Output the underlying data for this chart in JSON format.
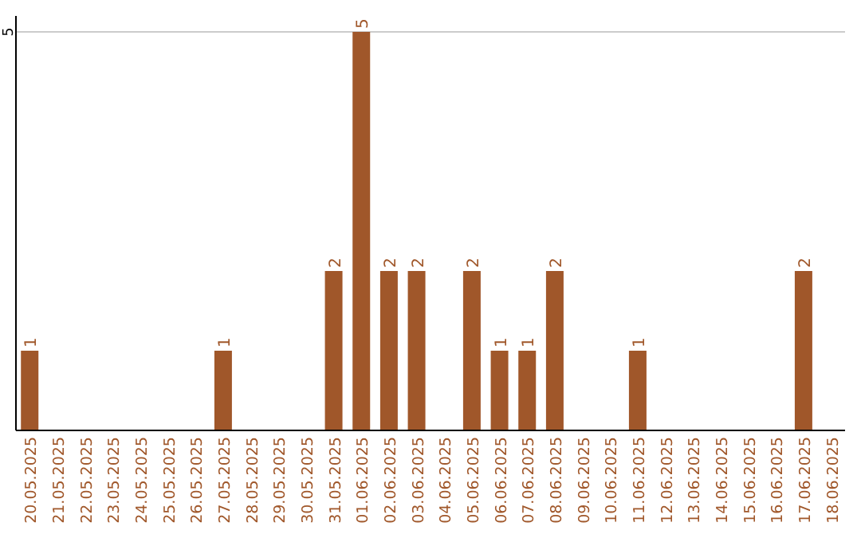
{
  "chart_data": {
    "type": "bar",
    "categories": [
      "20.05.2025",
      "21.05.2025",
      "22.05.2025",
      "23.05.2025",
      "24.05.2025",
      "25.05.2025",
      "26.05.2025",
      "27.05.2025",
      "28.05.2025",
      "29.05.2025",
      "30.05.2025",
      "31.05.2025",
      "01.06.2025",
      "02.06.2025",
      "03.06.2025",
      "04.06.2025",
      "05.06.2025",
      "06.06.2025",
      "07.06.2025",
      "08.06.2025",
      "09.06.2025",
      "10.06.2025",
      "11.06.2025",
      "12.06.2025",
      "13.06.2025",
      "14.06.2025",
      "15.06.2025",
      "16.06.2025",
      "17.06.2025",
      "18.06.2025"
    ],
    "values": [
      1,
      0,
      0,
      0,
      0,
      0,
      0,
      1,
      0,
      0,
      0,
      2,
      5,
      2,
      2,
      0,
      2,
      1,
      1,
      2,
      0,
      0,
      1,
      0,
      0,
      0,
      0,
      0,
      2,
      0
    ],
    "value_labels": [
      "1",
      null,
      null,
      null,
      null,
      null,
      null,
      "1",
      null,
      null,
      null,
      "2",
      "5",
      "2",
      "2",
      null,
      "2",
      "1",
      "1",
      "2",
      null,
      null,
      "1",
      null,
      null,
      null,
      null,
      null,
      "2",
      null
    ],
    "color": "#a0572a",
    "ylim": [
      0,
      5.2
    ],
    "yticks": [
      5
    ],
    "grid": "y"
  }
}
